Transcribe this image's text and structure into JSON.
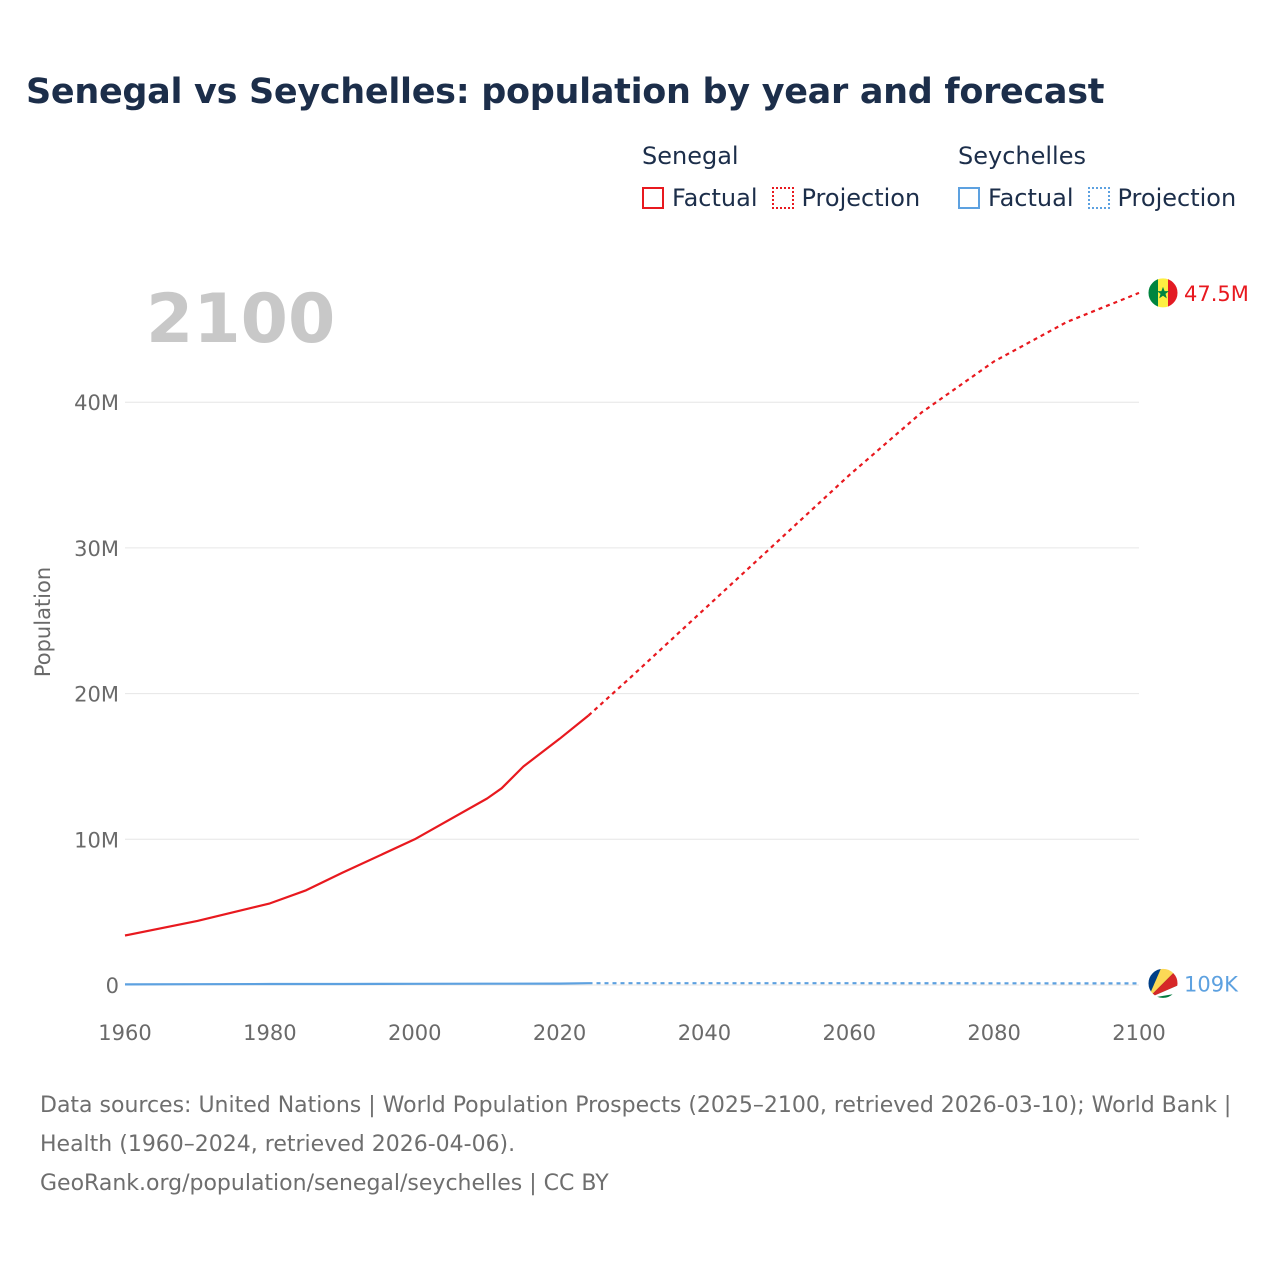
{
  "title": "Senegal vs Seychelles: population by year and forecast",
  "legend": {
    "groups": [
      {
        "name": "Senegal",
        "factual": "Factual",
        "projection": "Projection",
        "color": "#e8191f"
      },
      {
        "name": "Seychelles",
        "factual": "Factual",
        "projection": "Projection",
        "color": "#5da1e0"
      }
    ]
  },
  "footer": {
    "sources": "Data sources: United Nations | World Population Prospects (2025–2100, retrieved 2026-03-10); World Bank | Health (1960–2024, retrieved 2026-04-06).",
    "credit": "GeoRank.org/population/senegal/seychelles | CC BY"
  },
  "chart_data": {
    "type": "line",
    "title": "Senegal vs Seychelles: population by year and forecast",
    "current_year_label": "2100",
    "xlabel": "",
    "ylabel": "Population",
    "xlim": [
      1960,
      2100
    ],
    "ylim": [
      0,
      48000000
    ],
    "x_ticks": [
      1960,
      1980,
      2000,
      2020,
      2040,
      2060,
      2080,
      2100
    ],
    "y_ticks": [
      {
        "value": 0,
        "label": "0"
      },
      {
        "value": 10000000,
        "label": "10M"
      },
      {
        "value": 20000000,
        "label": "20M"
      },
      {
        "value": 30000000,
        "label": "30M"
      },
      {
        "value": 40000000,
        "label": "40M"
      }
    ],
    "grid": true,
    "series": [
      {
        "name": "Senegal",
        "color": "#e8191f",
        "end_label": "47.5M",
        "flag": "senegal-flag",
        "factual": [
          [
            1960,
            3400000
          ],
          [
            1970,
            4400000
          ],
          [
            1980,
            5600000
          ],
          [
            1985,
            6500000
          ],
          [
            1990,
            7700000
          ],
          [
            2000,
            10000000
          ],
          [
            2010,
            12800000
          ],
          [
            2012,
            13500000
          ],
          [
            2015,
            15000000
          ],
          [
            2020,
            16900000
          ],
          [
            2024,
            18500000
          ]
        ],
        "projection": [
          [
            2024,
            18500000
          ],
          [
            2030,
            21200000
          ],
          [
            2040,
            25800000
          ],
          [
            2050,
            30400000
          ],
          [
            2060,
            35000000
          ],
          [
            2070,
            39300000
          ],
          [
            2080,
            42800000
          ],
          [
            2090,
            45500000
          ],
          [
            2100,
            47500000
          ]
        ]
      },
      {
        "name": "Seychelles",
        "color": "#5da1e0",
        "end_label": "109K",
        "flag": "seychelles-flag",
        "factual": [
          [
            1960,
            42000
          ],
          [
            1970,
            52000
          ],
          [
            1980,
            66000
          ],
          [
            1990,
            71000
          ],
          [
            2000,
            81000
          ],
          [
            2010,
            89000
          ],
          [
            2020,
            99000
          ],
          [
            2024,
            122000
          ]
        ],
        "projection": [
          [
            2024,
            122000
          ],
          [
            2040,
            126000
          ],
          [
            2060,
            122000
          ],
          [
            2080,
            116000
          ],
          [
            2100,
            109000
          ]
        ]
      }
    ]
  }
}
